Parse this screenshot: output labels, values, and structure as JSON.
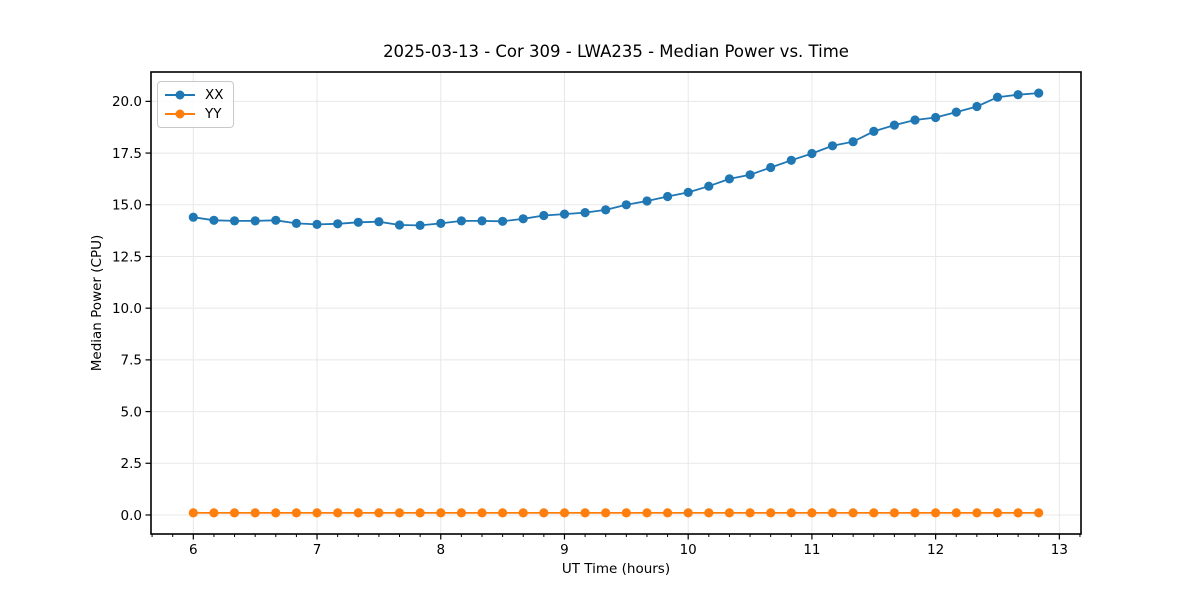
{
  "figure": {
    "title": "2025-03-13 - Cor 309 - LWA235 - Median Power vs. Time"
  },
  "chart_data": {
    "type": "line",
    "title": "2025-03-13 - Cor 309 - LWA235 - Median Power vs. Time",
    "xlabel": "UT Time (hours)",
    "ylabel": "Median Power (CPU)",
    "xlim": [
      5.658,
      13.175
    ],
    "ylim": [
      -0.92,
      21.42
    ],
    "x_ticks": [
      6,
      7,
      8,
      9,
      10,
      11,
      12,
      13
    ],
    "x_tick_labels": [
      "6",
      "7",
      "8",
      "9",
      "10",
      "11",
      "12",
      "13"
    ],
    "y_ticks": [
      0,
      2.5,
      5,
      7.5,
      10,
      12.5,
      15,
      17.5,
      20
    ],
    "y_tick_labels": [
      "0.0",
      "2.5",
      "5.0",
      "7.5",
      "10.0",
      "12.5",
      "15.0",
      "17.5",
      "20.0"
    ],
    "x_minor_tick_step": 0.1666667,
    "grid": true,
    "legend_position": "upper left",
    "x": [
      6.0,
      6.1667,
      6.3333,
      6.5,
      6.6667,
      6.8333,
      7.0,
      7.1667,
      7.3333,
      7.5,
      7.6667,
      7.8333,
      8.0,
      8.1667,
      8.3333,
      8.5,
      8.6667,
      8.8333,
      9.0,
      9.1667,
      9.3333,
      9.5,
      9.6667,
      9.8333,
      10.0,
      10.1667,
      10.3333,
      10.5,
      10.6667,
      10.8333,
      11.0,
      11.1667,
      11.3333,
      11.5,
      11.6667,
      11.8333,
      12.0,
      12.1667,
      12.3333,
      12.5,
      12.6667,
      12.8333
    ],
    "series": [
      {
        "name": "XX",
        "color": "#1f77b4",
        "values": [
          14.4,
          14.25,
          14.22,
          14.22,
          14.25,
          14.1,
          14.05,
          14.08,
          14.15,
          14.18,
          14.02,
          14.0,
          14.1,
          14.22,
          14.22,
          14.2,
          14.32,
          14.48,
          14.55,
          14.62,
          14.75,
          15.0,
          15.18,
          15.4,
          15.6,
          15.9,
          16.25,
          16.45,
          16.8,
          17.15,
          17.48,
          17.85,
          18.05,
          18.55,
          18.85,
          19.1,
          19.22,
          19.48,
          19.75,
          20.2,
          20.32,
          20.4
        ]
      },
      {
        "name": "YY",
        "color": "#ff7f0e",
        "values": [
          0.1,
          0.1,
          0.1,
          0.1,
          0.1,
          0.1,
          0.1,
          0.1,
          0.1,
          0.1,
          0.1,
          0.1,
          0.1,
          0.1,
          0.1,
          0.1,
          0.1,
          0.1,
          0.1,
          0.1,
          0.1,
          0.1,
          0.1,
          0.1,
          0.1,
          0.1,
          0.1,
          0.1,
          0.1,
          0.1,
          0.1,
          0.1,
          0.1,
          0.1,
          0.1,
          0.1,
          0.1,
          0.1,
          0.1,
          0.1,
          0.1,
          0.1
        ]
      }
    ]
  }
}
